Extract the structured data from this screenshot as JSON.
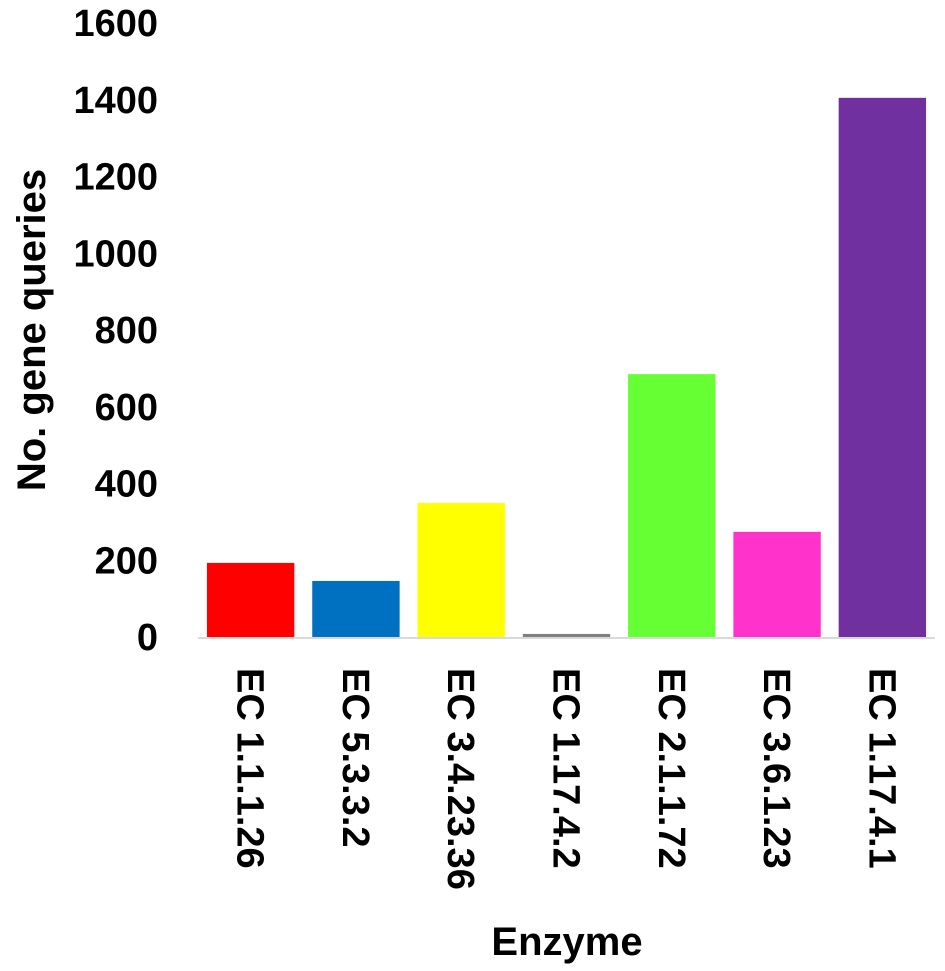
{
  "chart_data": {
    "type": "bar",
    "categories": [
      "EC 1.1.1.26",
      "EC 5.3.3.2",
      "EC 3.4.23.36",
      "EC 1.17.4.2",
      "EC 2.1.1.72",
      "EC 3.6.1.23",
      "EC 1.17.4.1"
    ],
    "values": [
      193,
      146,
      349,
      8,
      685,
      274,
      1405
    ],
    "colors": [
      "#ff0000",
      "#0070c0",
      "#ffff00",
      "#808080",
      "#66ff33",
      "#ff33cc",
      "#7030a0"
    ],
    "xlabel": "Enzyme",
    "ylabel": "No. gene queries",
    "ylim": [
      0,
      1600
    ],
    "yticks": [
      0,
      200,
      400,
      600,
      800,
      1000,
      1200,
      1400,
      1600
    ],
    "grid": false,
    "legend": "none"
  }
}
